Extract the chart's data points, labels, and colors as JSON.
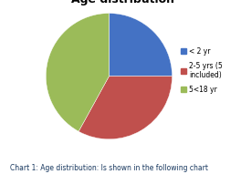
{
  "title": "Age distribution",
  "slices": [
    0.25,
    0.33,
    0.42
  ],
  "labels": [
    "< 2 yr",
    "2-5 yrs (5\nincluded)",
    "5<18 yr"
  ],
  "colors": [
    "#4472C4",
    "#C0504D",
    "#9BBB59"
  ],
  "startangle": 90,
  "caption": "Chart 1: Age distribution: Is shown in the following chart",
  "bg_color": "#E8E8E8",
  "border_color": "#AAAAAA",
  "title_fontsize": 9,
  "legend_fontsize": 5.5,
  "caption_fontsize": 5.5,
  "caption_color": "#17375E"
}
